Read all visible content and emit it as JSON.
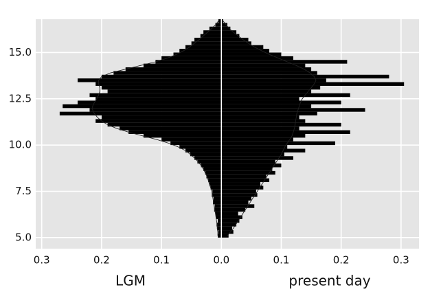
{
  "chart_data": {
    "type": "back-to-back-histogram",
    "bins": [
      5.0,
      5.2,
      5.4,
      5.6,
      5.8,
      6.0,
      6.2,
      6.4,
      6.6,
      6.8,
      7.0,
      7.2,
      7.4,
      7.6,
      7.8,
      8.0,
      8.2,
      8.4,
      8.6,
      8.8,
      9.0,
      9.2,
      9.4,
      9.6,
      9.8,
      10.0,
      10.2,
      10.4,
      10.6,
      10.8,
      11.0,
      11.2,
      11.4,
      11.6,
      11.8,
      12.0,
      12.2,
      12.4,
      12.6,
      12.8,
      13.0,
      13.2,
      13.4,
      13.6,
      13.8,
      14.0,
      14.2,
      14.4,
      14.6,
      14.8,
      15.0,
      15.2,
      15.4,
      15.6,
      15.8,
      16.0,
      16.2,
      16.4,
      16.6,
      16.8
    ],
    "series": [
      {
        "name": "LGM",
        "color": "#000000",
        "values": [
          0.006,
          0.005,
          0.007,
          0.008,
          0.006,
          0.009,
          0.01,
          0.012,
          0.011,
          0.014,
          0.013,
          0.016,
          0.015,
          0.018,
          0.02,
          0.022,
          0.025,
          0.027,
          0.03,
          0.034,
          0.04,
          0.045,
          0.052,
          0.06,
          0.07,
          0.085,
          0.1,
          0.13,
          0.155,
          0.17,
          0.19,
          0.21,
          0.2,
          0.27,
          0.22,
          0.265,
          0.24,
          0.21,
          0.22,
          0.19,
          0.2,
          0.21,
          0.24,
          0.2,
          0.18,
          0.16,
          0.13,
          0.11,
          0.1,
          0.08,
          0.07,
          0.06,
          0.05,
          0.045,
          0.035,
          0.03,
          0.02,
          0.01,
          0.005
        ],
        "density": [
          0.006,
          0.006,
          0.007,
          0.007,
          0.008,
          0.009,
          0.01,
          0.011,
          0.012,
          0.013,
          0.014,
          0.015,
          0.016,
          0.018,
          0.02,
          0.022,
          0.024,
          0.027,
          0.03,
          0.034,
          0.039,
          0.045,
          0.052,
          0.06,
          0.072,
          0.088,
          0.108,
          0.132,
          0.155,
          0.175,
          0.19,
          0.2,
          0.207,
          0.212,
          0.215,
          0.215,
          0.212,
          0.208,
          0.205,
          0.203,
          0.203,
          0.205,
          0.205,
          0.2,
          0.185,
          0.16,
          0.135,
          0.11,
          0.09,
          0.075,
          0.063,
          0.053,
          0.045,
          0.037,
          0.03,
          0.023,
          0.016,
          0.01,
          0.005
        ]
      },
      {
        "name": "present day",
        "color": "#000000",
        "values": [
          0.012,
          0.02,
          0.018,
          0.025,
          0.03,
          0.035,
          0.028,
          0.04,
          0.055,
          0.045,
          0.05,
          0.06,
          0.058,
          0.07,
          0.065,
          0.08,
          0.075,
          0.09,
          0.085,
          0.1,
          0.09,
          0.12,
          0.105,
          0.14,
          0.11,
          0.19,
          0.12,
          0.14,
          0.215,
          0.13,
          0.2,
          0.14,
          0.13,
          0.16,
          0.24,
          0.15,
          0.2,
          0.13,
          0.215,
          0.15,
          0.165,
          0.305,
          0.175,
          0.28,
          0.16,
          0.15,
          0.14,
          0.21,
          0.12,
          0.1,
          0.08,
          0.07,
          0.05,
          0.045,
          0.03,
          0.025,
          0.015,
          0.01,
          0.003
        ],
        "density": [
          0.01,
          0.015,
          0.02,
          0.024,
          0.028,
          0.032,
          0.036,
          0.04,
          0.044,
          0.048,
          0.052,
          0.056,
          0.06,
          0.064,
          0.068,
          0.072,
          0.076,
          0.08,
          0.084,
          0.088,
          0.092,
          0.096,
          0.1,
          0.103,
          0.106,
          0.11,
          0.114,
          0.118,
          0.12,
          0.122,
          0.123,
          0.124,
          0.125,
          0.126,
          0.128,
          0.13,
          0.132,
          0.135,
          0.14,
          0.145,
          0.15,
          0.155,
          0.158,
          0.155,
          0.148,
          0.138,
          0.125,
          0.11,
          0.095,
          0.08,
          0.067,
          0.055,
          0.045,
          0.036,
          0.028,
          0.02,
          0.013,
          0.008,
          0.003
        ]
      }
    ],
    "xlim": [
      -0.31,
      0.33
    ],
    "xticks": [
      {
        "value": -0.3,
        "label": "0.3"
      },
      {
        "value": -0.2,
        "label": "0.2"
      },
      {
        "value": -0.1,
        "label": "0.1"
      },
      {
        "value": 0,
        "label": "0.0"
      },
      0.1,
      0.2,
      0.3
    ],
    "ylim": [
      4.4,
      16.8
    ],
    "yticks": [
      {
        "value": 5,
        "label": "5.0"
      },
      {
        "value": 7.5,
        "label": "7.5"
      },
      {
        "value": 10,
        "label": "10.0"
      },
      {
        "value": 12.5,
        "label": "12.5"
      },
      {
        "value": 15,
        "label": "15.0"
      }
    ],
    "grid": true
  }
}
